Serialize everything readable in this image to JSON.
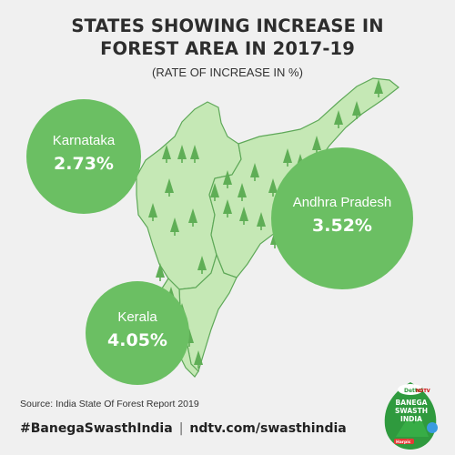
{
  "title_line1": "STATES SHOWING INCREASE IN",
  "title_line2": "FOREST AREA IN 2017-19",
  "subtitle": "(RATE OF INCREASE IN %)",
  "source": "Source: India State Of Forest Report 2019",
  "hashtag": "#BanegaSwasthIndia",
  "site": "ndtv.com/swasthindia",
  "logo": {
    "brand1": "Dettol",
    "brand2": "NDTV",
    "line1": "BANEGA",
    "line2": "SWASTH",
    "line3": "INDIA",
    "brand3": "Harpic"
  },
  "colors": {
    "background": "#f0f0f0",
    "bubble": "#6bbf63",
    "map_fill": "#c5e8b5",
    "map_stroke": "#5ea858",
    "tree": "#5fae56"
  },
  "chart_data": {
    "type": "bubble",
    "title": "STATES SHOWING INCREASE IN FOREST AREA IN 2017-19",
    "subtitle": "(RATE OF INCREASE IN %)",
    "unit": "%",
    "categories": [
      "Karnataka",
      "Andhra Pradesh",
      "Kerala"
    ],
    "values": [
      2.73,
      3.52,
      4.05
    ],
    "labels": [
      "2.73%",
      "3.52%",
      "4.05%"
    ]
  }
}
